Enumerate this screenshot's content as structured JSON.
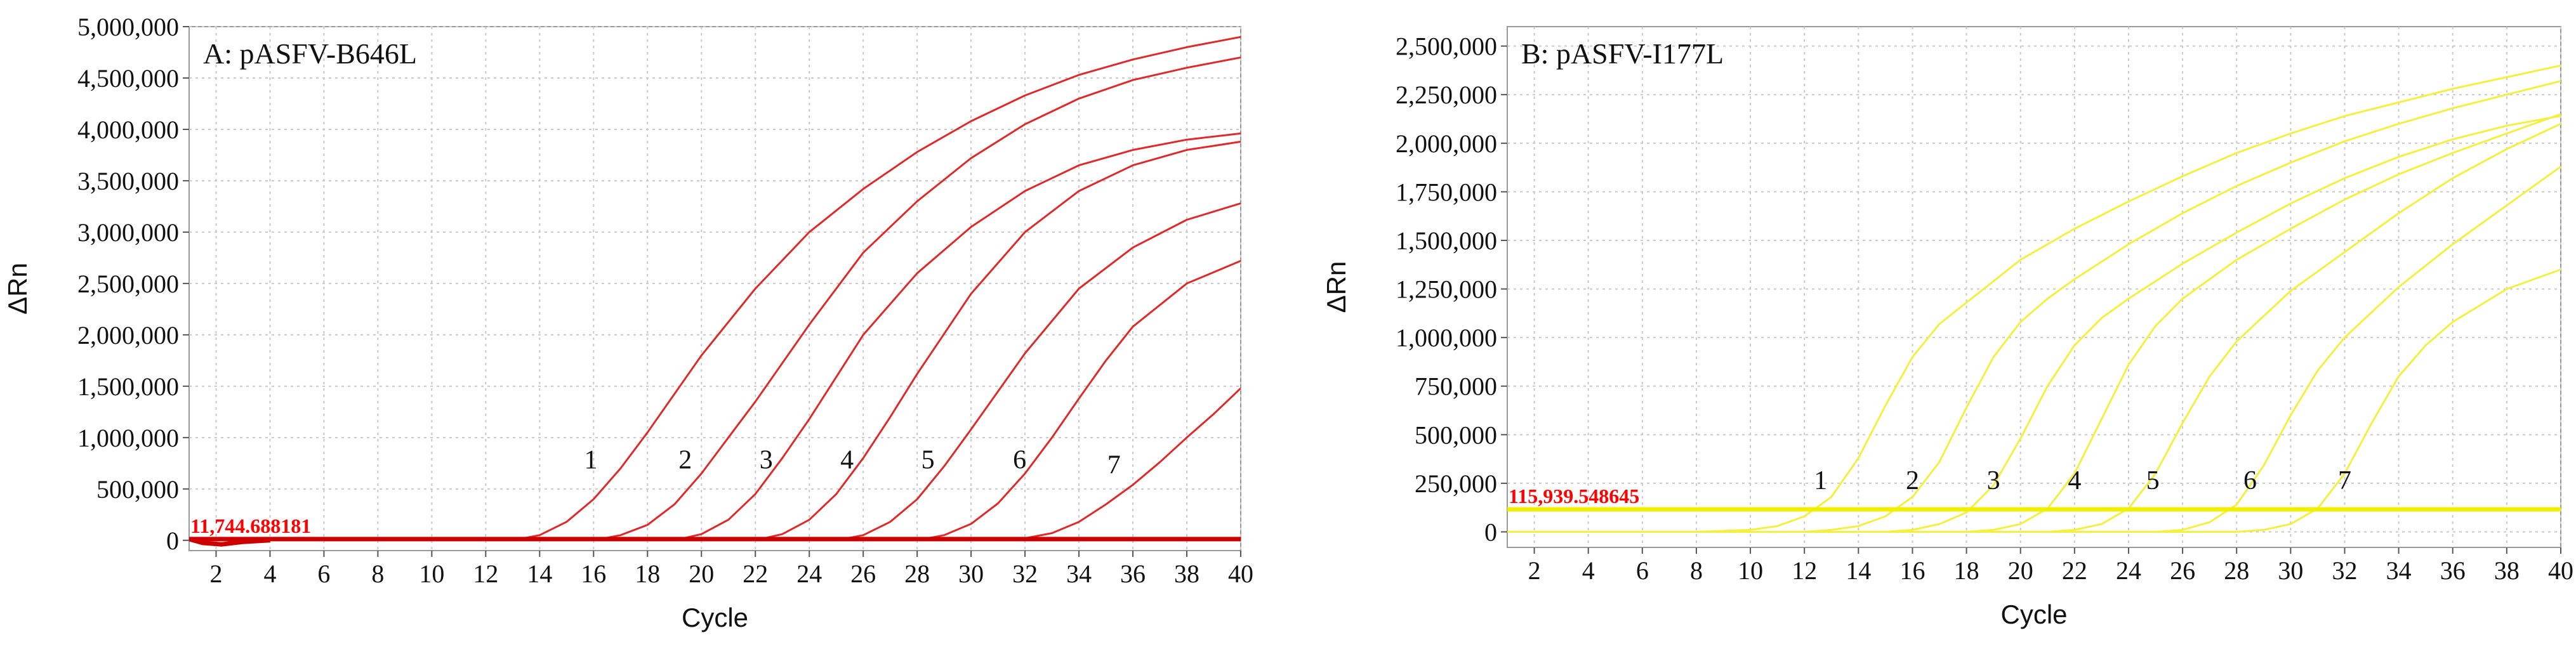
{
  "chart_data": [
    {
      "type": "line",
      "panel_label": "A: pASFV-B646L",
      "xlabel": "Cycle",
      "ylabel": "ΔRn",
      "xlim": [
        1,
        40
      ],
      "ylim": [
        -100000,
        5000000
      ],
      "xticks": [
        2,
        4,
        6,
        8,
        10,
        12,
        14,
        16,
        18,
        20,
        22,
        24,
        26,
        28,
        30,
        32,
        34,
        36,
        38,
        40
      ],
      "yticks": [
        0,
        500000,
        1000000,
        1500000,
        2000000,
        2500000,
        3000000,
        3500000,
        4000000,
        4500000,
        5000000
      ],
      "ytick_labels": [
        "0",
        "500,000",
        "1,000,000",
        "1,500,000",
        "2,000,000",
        "2,500,000",
        "3,000,000",
        "3,500,000",
        "4,000,000",
        "4,500,000",
        "5,000,000"
      ],
      "grid": true,
      "threshold": {
        "value": 11744.688181,
        "label": "11,744.688181",
        "color": "#cc0000",
        "label_color": "#ff0000"
      },
      "line_color": "#dd2a2a",
      "series": [
        {
          "label": "1",
          "label_x": 15.9,
          "label_y": 700000,
          "x": [
            13,
            14,
            15,
            16,
            17,
            18,
            20,
            22,
            24,
            26,
            28,
            30,
            32,
            34,
            36,
            38,
            40
          ],
          "y": [
            0,
            50000,
            180000,
            400000,
            700000,
            1050000,
            1800000,
            2450000,
            3000000,
            3420000,
            3780000,
            4080000,
            4330000,
            4530000,
            4680000,
            4800000,
            4900000
          ]
        },
        {
          "label": "2",
          "label_x": 19.4,
          "label_y": 700000,
          "x": [
            16,
            17,
            18,
            19,
            20,
            21,
            22,
            24,
            26,
            28,
            30,
            32,
            34,
            36,
            38,
            40
          ],
          "y": [
            0,
            50000,
            150000,
            350000,
            650000,
            1000000,
            1350000,
            2100000,
            2800000,
            3300000,
            3720000,
            4050000,
            4300000,
            4480000,
            4600000,
            4700000
          ]
        },
        {
          "label": "3",
          "label_x": 22.4,
          "label_y": 700000,
          "x": [
            19,
            20,
            21,
            22,
            23,
            24,
            26,
            28,
            30,
            32,
            34,
            36,
            38,
            40
          ],
          "y": [
            0,
            60000,
            200000,
            450000,
            800000,
            1180000,
            2000000,
            2600000,
            3050000,
            3400000,
            3650000,
            3800000,
            3900000,
            3960000
          ]
        },
        {
          "label": "4",
          "label_x": 25.4,
          "label_y": 700000,
          "x": [
            22,
            23,
            24,
            25,
            26,
            27,
            28,
            30,
            32,
            34,
            36,
            38,
            40
          ],
          "y": [
            0,
            60000,
            200000,
            450000,
            800000,
            1200000,
            1620000,
            2400000,
            3000000,
            3400000,
            3650000,
            3800000,
            3880000
          ]
        },
        {
          "label": "5",
          "label_x": 28.4,
          "label_y": 700000,
          "x": [
            25,
            26,
            27,
            28,
            29,
            30,
            31,
            32,
            34,
            36,
            38,
            40
          ],
          "y": [
            0,
            50000,
            180000,
            400000,
            720000,
            1080000,
            1450000,
            1820000,
            2450000,
            2850000,
            3120000,
            3280000
          ]
        },
        {
          "label": "6",
          "label_x": 31.8,
          "label_y": 700000,
          "x": [
            28,
            29,
            30,
            31,
            32,
            33,
            34,
            35,
            36,
            38,
            40
          ],
          "y": [
            0,
            50000,
            160000,
            360000,
            650000,
            1000000,
            1380000,
            1750000,
            2080000,
            2500000,
            2720000
          ]
        },
        {
          "label": "7",
          "label_x": 35.3,
          "label_y": 650000,
          "x": [
            31,
            32,
            33,
            34,
            35,
            36,
            37,
            38,
            39,
            40
          ],
          "y": [
            0,
            20000,
            70000,
            180000,
            350000,
            540000,
            760000,
            1000000,
            1230000,
            1480000
          ]
        }
      ]
    },
    {
      "type": "line",
      "panel_label": "B: pASFV-I177L",
      "xlabel": "Cycle",
      "ylabel": "ΔRn",
      "xlim": [
        1,
        40
      ],
      "ylim": [
        -80000,
        2600000
      ],
      "xticks": [
        2,
        4,
        6,
        8,
        10,
        12,
        14,
        16,
        18,
        20,
        22,
        24,
        26,
        28,
        30,
        32,
        34,
        36,
        38,
        40
      ],
      "yticks": [
        0,
        250000,
        500000,
        750000,
        1000000,
        1250000,
        1500000,
        1750000,
        2000000,
        2250000,
        2500000
      ],
      "ytick_labels": [
        "0",
        "250,000",
        "500,000",
        "750,000",
        "1,000,000",
        "1,250,000",
        "1,500,000",
        "1,750,000",
        "2,000,000",
        "2,250,000",
        "2,500,000"
      ],
      "grid": true,
      "threshold": {
        "value": 115939.548645,
        "label": "115,939.548645",
        "color": "#f0f000",
        "label_color": "#ff0000"
      },
      "line_color": "#f2f040",
      "series": [
        {
          "label": "1",
          "label_x": 12.6,
          "label_y": 220000,
          "x": [
            1,
            8,
            10,
            11,
            12,
            13,
            14,
            15,
            16,
            17,
            18,
            20,
            22,
            24,
            26,
            28,
            30,
            32,
            34,
            36,
            38,
            40
          ],
          "y": [
            0,
            0,
            10000,
            30000,
            80000,
            180000,
            380000,
            650000,
            900000,
            1070000,
            1180000,
            1400000,
            1560000,
            1700000,
            1830000,
            1950000,
            2050000,
            2140000,
            2210000,
            2280000,
            2340000,
            2400000
          ]
        },
        {
          "label": "2",
          "label_x": 16.0,
          "label_y": 220000,
          "x": [
            1,
            12,
            13,
            14,
            15,
            16,
            17,
            18,
            19,
            20,
            21,
            22,
            24,
            26,
            28,
            30,
            32,
            34,
            36,
            38,
            40
          ],
          "y": [
            0,
            0,
            10000,
            30000,
            80000,
            180000,
            360000,
            640000,
            900000,
            1080000,
            1200000,
            1300000,
            1480000,
            1640000,
            1780000,
            1900000,
            2010000,
            2100000,
            2180000,
            2250000,
            2320000
          ]
        },
        {
          "label": "3",
          "label_x": 19.0,
          "label_y": 220000,
          "x": [
            1,
            15,
            16,
            17,
            18,
            19,
            20,
            21,
            22,
            23,
            24,
            26,
            28,
            30,
            32,
            34,
            36,
            38,
            40
          ],
          "y": [
            0,
            0,
            10000,
            40000,
            100000,
            240000,
            480000,
            750000,
            960000,
            1100000,
            1200000,
            1380000,
            1540000,
            1690000,
            1820000,
            1930000,
            2020000,
            2090000,
            2140000
          ]
        },
        {
          "label": "4",
          "label_x": 22.0,
          "label_y": 220000,
          "x": [
            1,
            18,
            19,
            20,
            21,
            22,
            23,
            24,
            25,
            26,
            28,
            30,
            32,
            34,
            36,
            38,
            40
          ],
          "y": [
            0,
            0,
            10000,
            40000,
            120000,
            300000,
            580000,
            860000,
            1060000,
            1200000,
            1400000,
            1560000,
            1710000,
            1840000,
            1950000,
            2050000,
            2150000
          ]
        },
        {
          "label": "5",
          "label_x": 24.9,
          "label_y": 220000,
          "x": [
            1,
            21,
            22,
            23,
            24,
            25,
            26,
            27,
            28,
            30,
            32,
            34,
            36,
            38,
            40
          ],
          "y": [
            0,
            0,
            10000,
            40000,
            120000,
            300000,
            560000,
            800000,
            980000,
            1240000,
            1440000,
            1640000,
            1820000,
            1970000,
            2100000
          ]
        },
        {
          "label": "6",
          "label_x": 28.5,
          "label_y": 220000,
          "x": [
            1,
            25,
            26,
            27,
            28,
            29,
            30,
            31,
            32,
            34,
            36,
            38,
            40
          ],
          "y": [
            0,
            0,
            10000,
            50000,
            140000,
            340000,
            600000,
            830000,
            1000000,
            1260000,
            1480000,
            1680000,
            1880000
          ]
        },
        {
          "label": "7",
          "label_x": 32.0,
          "label_y": 220000,
          "x": [
            1,
            28,
            29,
            30,
            31,
            32,
            33,
            34,
            35,
            36,
            38,
            40
          ],
          "y": [
            0,
            0,
            10000,
            40000,
            120000,
            300000,
            560000,
            800000,
            960000,
            1080000,
            1250000,
            1350000
          ]
        }
      ]
    }
  ]
}
